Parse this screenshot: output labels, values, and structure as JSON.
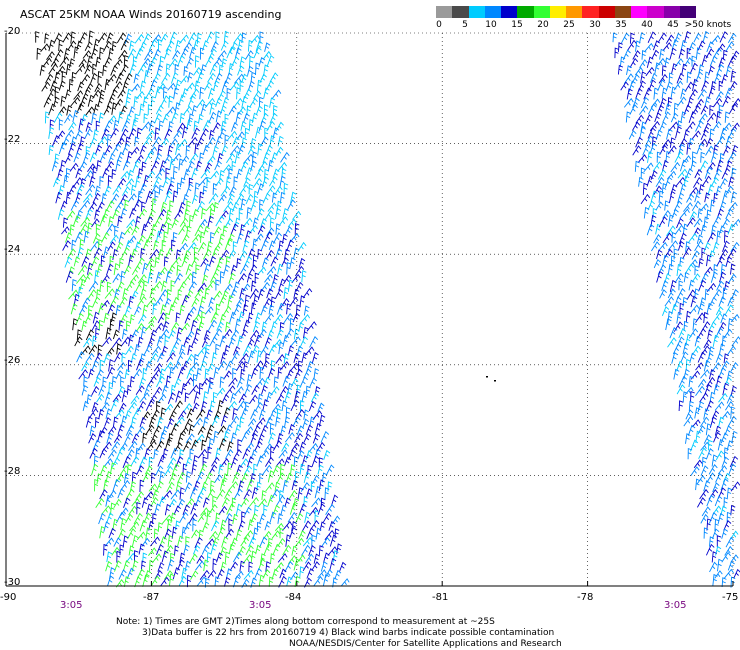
{
  "title": "ASCAT 25KM NOAA Winds 20160719 ascending",
  "colorbar": {
    "colors": [
      "#9a9a9a",
      "#4a4a4a",
      "#00ccff",
      "#0088ff",
      "#0000cc",
      "#00aa00",
      "#33ff33",
      "#ffee00",
      "#ff9900",
      "#ff2222",
      "#cc0000",
      "#8b4513",
      "#ff00ff",
      "#cc00cc",
      "#8800aa",
      "#440077"
    ],
    "labels": [
      "0",
      "5",
      "10",
      "15",
      "20",
      "25",
      "30",
      "35",
      "40",
      "45",
      ">50 knots"
    ]
  },
  "lon_ticks": [
    "-90",
    "-87",
    "-84",
    "-81",
    "-78",
    "-75"
  ],
  "lat_ticks": [
    "-20",
    "-22",
    "-24",
    "-26",
    "-28",
    "-30"
  ],
  "time_labels": [
    "3:05",
    "3:05",
    "3:05"
  ],
  "notes": [
    "Note: 1) Times are GMT 2)Times along bottom correspond to measurement at ~25S",
    "3)Data buffer is 22 hrs from 20160719 4) Black wind barbs indicate possible contamination",
    "NOAA/NESDIS/Center for Satellite Applications and Research"
  ],
  "map": {
    "lon_range": [
      -90,
      -75
    ],
    "lat_range": [
      -30,
      -20
    ],
    "swaths": [
      {
        "name": "west-swath",
        "lon_at_top": [
          -89.4,
          -84.6
        ],
        "lon_at_bottom": [
          -87.9,
          -83.0
        ]
      },
      {
        "name": "east-swath",
        "lon_at_top": [
          -77.5,
          -75.0
        ],
        "lon_at_bottom": [
          -75.4,
          -75.0
        ]
      }
    ],
    "barb_colors": {
      "black": "#000000",
      "cyan": "#00ccff",
      "light_blue": "#0088ff",
      "dark_blue": "#0000cc",
      "green": "#33ff33"
    }
  }
}
